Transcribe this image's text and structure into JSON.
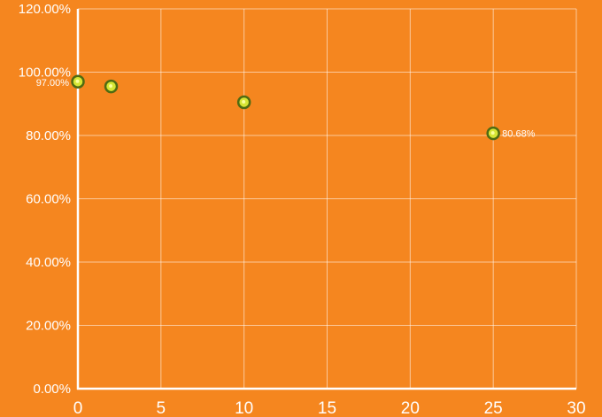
{
  "colors": {
    "background": "#f5861f",
    "grid": "#ffffff",
    "axis": "#ffffff",
    "text": "#ffffff",
    "point_fill": "#d6e635",
    "point_stroke": "#4f6b12"
  },
  "chart_data": {
    "type": "scatter",
    "title": "",
    "xlabel": "",
    "ylabel": "",
    "grid": true,
    "legend": "none",
    "xlim": [
      0,
      30
    ],
    "ylim": [
      0,
      120
    ],
    "x_ticks": [
      0,
      5,
      10,
      15,
      20,
      25,
      30
    ],
    "y_ticks": [
      0,
      20,
      40,
      60,
      80,
      100,
      120
    ],
    "x_tick_labels": [
      "0",
      "5",
      "10",
      "15",
      "20",
      "25",
      "30"
    ],
    "y_tick_labels": [
      "0.00%",
      "20.00%",
      "40.00%",
      "60.00%",
      "80.00%",
      "100.00%",
      "120.00%"
    ],
    "series": [
      {
        "points": [
          {
            "x": 0,
            "y": 97.0,
            "label": "97.00%"
          },
          {
            "x": 2,
            "y": 95.5,
            "label": ""
          },
          {
            "x": 10,
            "y": 90.5,
            "label": ""
          },
          {
            "x": 25,
            "y": 80.68,
            "label": "80.68%"
          }
        ]
      }
    ]
  }
}
